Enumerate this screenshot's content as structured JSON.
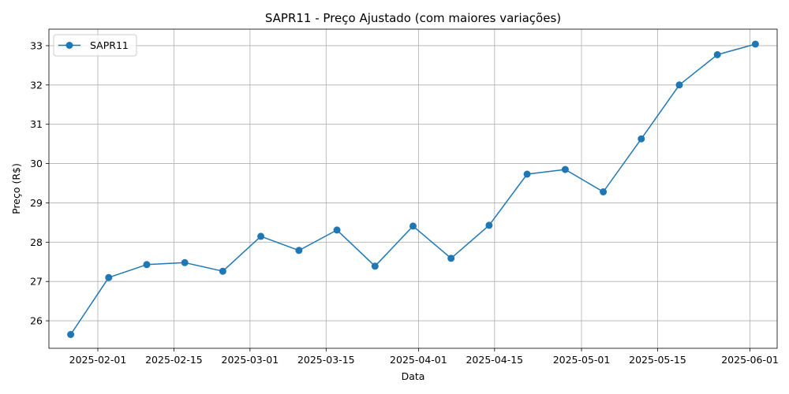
{
  "chart_data": {
    "type": "line",
    "title": "SAPR11 - Preço Ajustado (com maiores variações)",
    "xlabel": "Data",
    "ylabel": "Preço (R$)",
    "x_type": "date",
    "xlim": [
      "2025-01-23",
      "2025-06-06"
    ],
    "ylim": [
      25.3,
      33.42
    ],
    "x_ticks": [
      "2025-02-01",
      "2025-02-15",
      "2025-03-01",
      "2025-03-15",
      "2025-04-01",
      "2025-04-15",
      "2025-05-01",
      "2025-05-15",
      "2025-06-01"
    ],
    "y_ticks": [
      26,
      27,
      28,
      29,
      30,
      31,
      32,
      33
    ],
    "grid": true,
    "legend_position": "top-left",
    "colors": {
      "series": "#1f77b4",
      "grid": "#b0b0b0"
    },
    "series": [
      {
        "name": "SAPR11",
        "x": [
          "2025-01-27",
          "2025-02-03",
          "2025-02-10",
          "2025-02-17",
          "2025-02-24",
          "2025-03-03",
          "2025-03-10",
          "2025-03-17",
          "2025-03-24",
          "2025-03-31",
          "2025-04-07",
          "2025-04-14",
          "2025-04-21",
          "2025-04-28",
          "2025-05-05",
          "2025-05-12",
          "2025-05-19",
          "2025-05-26",
          "2025-06-02"
        ],
        "y": [
          25.65,
          27.1,
          27.43,
          27.48,
          27.26,
          28.15,
          27.79,
          28.31,
          27.39,
          28.41,
          27.59,
          28.43,
          29.73,
          29.85,
          29.28,
          30.63,
          32.0,
          32.77,
          33.04
        ]
      }
    ]
  }
}
